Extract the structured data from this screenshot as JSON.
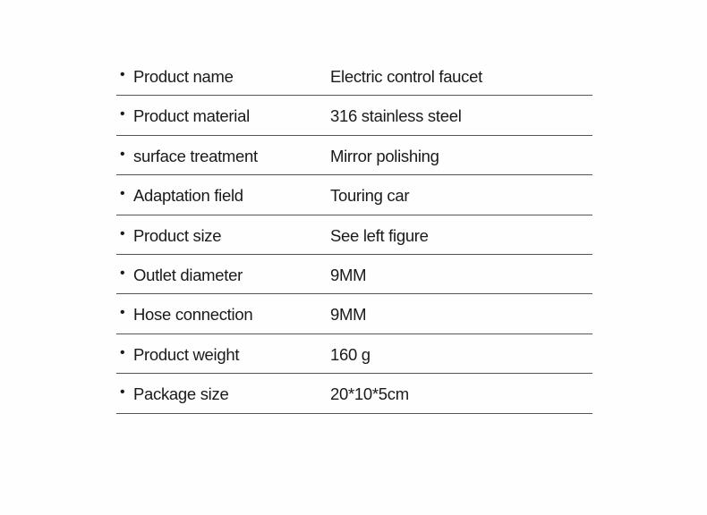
{
  "specs": [
    {
      "label": "Product name",
      "value": "Electric control faucet"
    },
    {
      "label": "Product material",
      "value": "316 stainless steel"
    },
    {
      "label": "surface treatment",
      "value": "Mirror polishing"
    },
    {
      "label": "Adaptation field",
      "value": "Touring car"
    },
    {
      "label": "Product size",
      "value": "See left figure"
    },
    {
      "label": "Outlet diameter",
      "value": "9MM"
    },
    {
      "label": "Hose connection",
      "value": "9MM"
    },
    {
      "label": "Product weight",
      "value": "160 g"
    },
    {
      "label": "Package size",
      "value": "20*10*5cm"
    }
  ],
  "bullet": "•"
}
